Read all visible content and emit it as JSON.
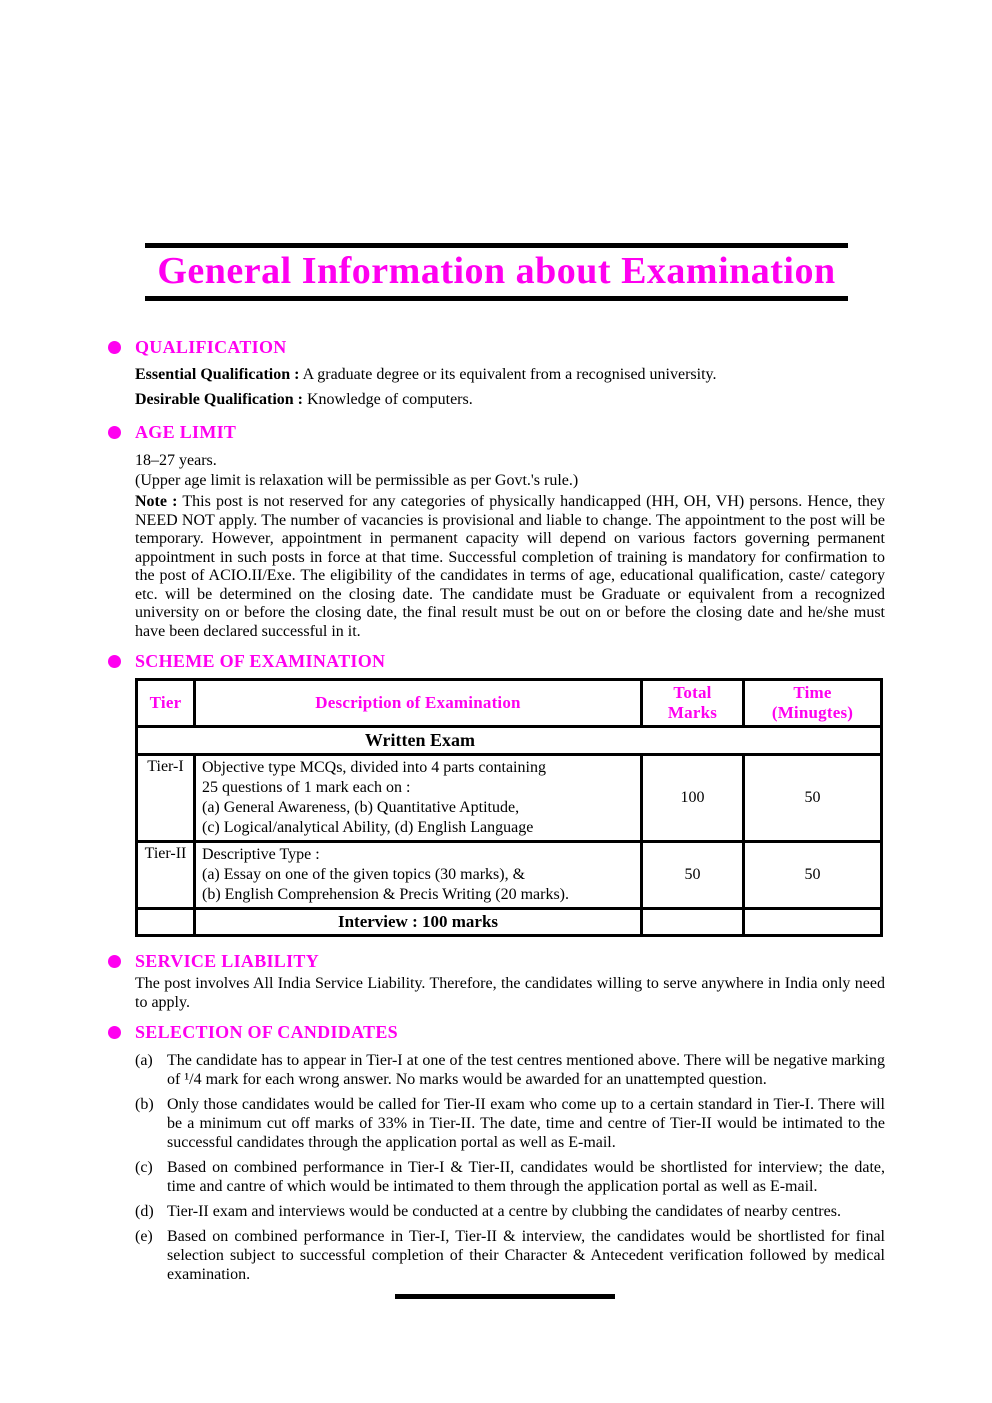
{
  "title": "General Information about Examination",
  "qualification": {
    "heading": "QUALIFICATION",
    "essential_label": "Essential Qualification :",
    "essential_text": " A graduate degree or its equivalent from a recognised university.",
    "desirable_label": "Desirable Qualification :",
    "desirable_text": " Knowledge of computers."
  },
  "age_limit": {
    "heading": "AGE LIMIT",
    "range": "18–27 years.",
    "relaxation": "(Upper age limit is relaxation will be permissible as per Govt.'s rule.)",
    "note_label": "Note :",
    "note_text": " This post is not reserved for any categories of physically handicapped (HH, OH, VH) persons. Hence, they NEED NOT apply. The number of vacancies is provisional and liable to change. The appointment to the post will be temporary. However, appointment in permanent capacity will depend on various factors governing permanent appointment in such posts in force at that time. Successful completion of training is mandatory for confirmation to the post of ACIO.II/Exe. The eligibility of the candidates in terms of age, educational qualification, caste/ category etc. will be determined on the closing date. The candidate must be Graduate or equivalent from a recognized university on or before the closing date, the final result must be out on or before the closing date and he/she must have been declared successful in it."
  },
  "scheme": {
    "heading": "SCHEME OF EXAMINATION",
    "table": {
      "headers": [
        "Tier",
        "Description of Examination",
        "Total Marks",
        "Time (Minugtes)"
      ],
      "group_row": "Written Exam",
      "rows": [
        {
          "tier": "Tier-I",
          "desc_lines": [
            "Objective type MCQs, divided into 4 parts containing",
            "25 questions of 1 mark each on :",
            "(a) General Awareness, (b) Quantitative Aptitude,",
            "(c) Logical/analytical Ability, (d) English Language"
          ],
          "marks": "100",
          "time": "50"
        },
        {
          "tier": "Tier-II",
          "desc_lines": [
            "Descriptive Type :",
            "(a) Essay on one of the given topics (30 marks), &",
            "(b) English Comprehension & Precis Writing (20 marks)."
          ],
          "marks": "50",
          "time": "50"
        }
      ],
      "interview_row": "Interview : 100 marks"
    }
  },
  "service_liability": {
    "heading": "SERVICE LIABILITY",
    "text": "The post involves All India Service Liability. Therefore, the candidates willing to serve anywhere in India only need to apply."
  },
  "selection": {
    "heading": "SELECTION OF CANDIDATES",
    "items": [
      {
        "label": "(a)",
        "text": "The candidate has to appear in Tier-I at one of the test centres mentioned above. There will be negative marking of ¹/4 mark for each wrong answer. No marks would be awarded for an unattempted question."
      },
      {
        "label": "(b)",
        "text": "Only those candidates would be called for Tier-II exam who come up to a certain standard in Tier-I. There will be a minimum cut off marks of 33% in Tier-II. The date, time and centre of Tier-II would be intimated to the successful candidates through the application portal as well as E-mail."
      },
      {
        "label": "(c)",
        "text": "Based on combined performance in Tier-I & Tier-II, candidates would be shortlisted for interview; the date, time and cantre of which would be intimated to them through the application portal as well as E-mail."
      },
      {
        "label": "(d)",
        "text": "Tier-II exam and interviews would be conducted at a centre by clubbing the candidates of nearby centres."
      },
      {
        "label": "(e)",
        "text": "Based on combined performance in Tier-I, Tier-II & interview, the candidates would be shortlisted for final selection subject to successful completion of their Character & Antecedent verification followed by medical examination."
      }
    ]
  },
  "colors": {
    "accent": "#FF00F0",
    "ink": "#000000"
  }
}
